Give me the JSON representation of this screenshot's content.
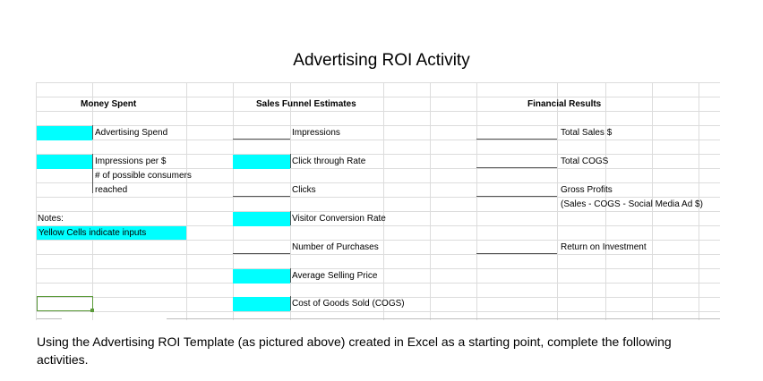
{
  "title": "Advertising ROI Activity",
  "sections": {
    "money_spent": "Money Spent",
    "sales_funnel": "Sales Funnel Estimates",
    "financial_results": "Financial Results"
  },
  "money_spent": {
    "advertising_spend": "Advertising Spend",
    "impressions_per": "Impressions per $",
    "possible_consumers": "# of possible consumers",
    "reached": "reached"
  },
  "funnel": {
    "impressions": "Impressions",
    "ctr": "Click through Rate",
    "clicks": "Clicks",
    "visitor_conversion": "Visitor Conversion Rate",
    "purchases": "Number of Purchases",
    "avg_price": "Average Selling Price",
    "cogs": "Cost of Goods Sold (COGS)"
  },
  "financial": {
    "total_sales": "Total Sales $",
    "total_cogs": "Total COGS",
    "gross_profits": "Gross Profits",
    "gross_profits_formula": "(Sales - COGS - Social Media Ad $)",
    "roi": "Return on Investment"
  },
  "notes": {
    "label": "Notes:",
    "text": "Yellow Cells indicate inputs"
  },
  "input_color": "#00ffff",
  "footer": "Using the Advertising ROI Template (as pictured above) created in Excel as a starting point, complete the following activities."
}
